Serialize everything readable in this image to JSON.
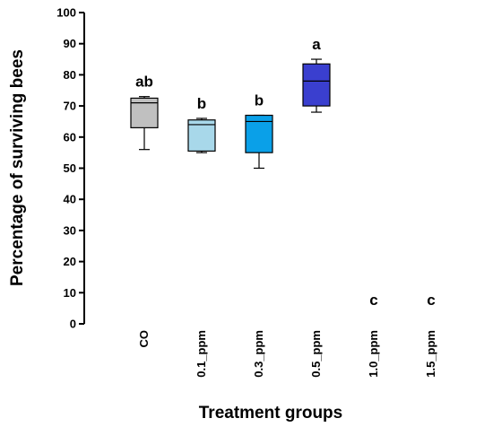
{
  "chart_data": {
    "type": "box",
    "title": "",
    "xlabel": "Treatment groups",
    "ylabel": "Percentage of surviving bees",
    "ylim": [
      0,
      100
    ],
    "yticks": [
      0,
      10,
      20,
      30,
      40,
      50,
      60,
      70,
      80,
      90,
      100
    ],
    "grid": false,
    "categories": [
      "CO",
      "0.1_ppm",
      "0.3_ppm",
      "0.5_ppm",
      "1.0_ppm",
      "1.5_ppm"
    ],
    "boxes": [
      {
        "category": "CO",
        "min": 56,
        "q1": 63,
        "median": 71,
        "q3": 72.5,
        "max": 73,
        "letter": "ab",
        "color": "#c0c0c0"
      },
      {
        "category": "0.1_ppm",
        "min": 55,
        "q1": 55.5,
        "median": 64,
        "q3": 65.5,
        "max": 66,
        "letter": "b",
        "color": "#a8d8ea"
      },
      {
        "category": "0.3_ppm",
        "min": 50,
        "q1": 55,
        "median": 65,
        "q3": 67,
        "max": 67,
        "letter": "b",
        "color": "#0aa0e8"
      },
      {
        "category": "0.5_ppm",
        "min": 68,
        "q1": 70,
        "median": 78,
        "q3": 83.5,
        "max": 85,
        "letter": "a",
        "color": "#3a3fcf"
      },
      {
        "category": "1.0_ppm",
        "min": null,
        "q1": null,
        "median": null,
        "q3": null,
        "max": null,
        "letter": "c",
        "color": ""
      },
      {
        "category": "1.5_ppm",
        "min": null,
        "q1": null,
        "median": null,
        "q3": null,
        "max": null,
        "letter": "c",
        "color": ""
      }
    ]
  }
}
